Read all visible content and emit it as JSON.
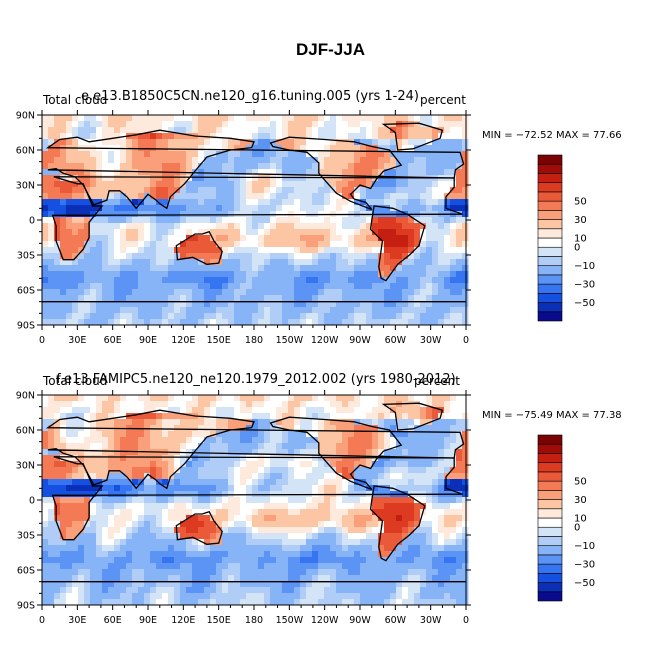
{
  "page": {
    "title": "DJF-JJA"
  },
  "palette": [
    "#0a0a8c",
    "#0c2fb8",
    "#1550e0",
    "#3575f2",
    "#5c94f5",
    "#87b3f7",
    "#b0cdf7",
    "#d4e4f7",
    "#ffffff",
    "#fdeadc",
    "#fcc6a4",
    "#f9a07a",
    "#f47a55",
    "#ea5a38",
    "#dc3b22",
    "#c51f12",
    "#a00c07",
    "#7a0403"
  ],
  "colorbar": {
    "labels": [
      "50",
      "30",
      "10",
      "0",
      "−10",
      "−30",
      "−50"
    ],
    "levels": [
      -60,
      -50,
      -40,
      -30,
      -20,
      -10,
      -5,
      0,
      5,
      10,
      20,
      30,
      40,
      50,
      60,
      70
    ]
  },
  "axes": {
    "lat_ticks": [
      "90N",
      "60N",
      "30N",
      "0",
      "30S",
      "60S",
      "90S"
    ],
    "lon_ticks": [
      "0",
      "30E",
      "60E",
      "90E",
      "120E",
      "150E",
      "180",
      "150W",
      "120W",
      "90W",
      "60W",
      "30W",
      "0"
    ]
  },
  "chart_data": [
    {
      "type": "heatmap",
      "title": "e.e13.B1850C5CN.ne120_g16.tuning.005 (yrs 1-24)",
      "subtitle_left": "Total cloud",
      "subtitle_right": "percent",
      "stats": "MIN = −72.52  MAX =  77.66",
      "min": -72.52,
      "max": 77.66,
      "xlim": [
        0,
        360
      ],
      "ylim": [
        -90,
        90
      ],
      "seed": 1
    },
    {
      "type": "heatmap",
      "title": "f.e13.FAMIPC5.ne120_ne120.1979_2012.002 (yrs 1980-2012)",
      "subtitle_left": "Total cloud",
      "subtitle_right": "percent",
      "stats": "MIN = −75.49  MAX =  77.38",
      "min": -75.49,
      "max": 77.38,
      "xlim": [
        0,
        360
      ],
      "ylim": [
        -90,
        90
      ],
      "seed": 2
    }
  ]
}
